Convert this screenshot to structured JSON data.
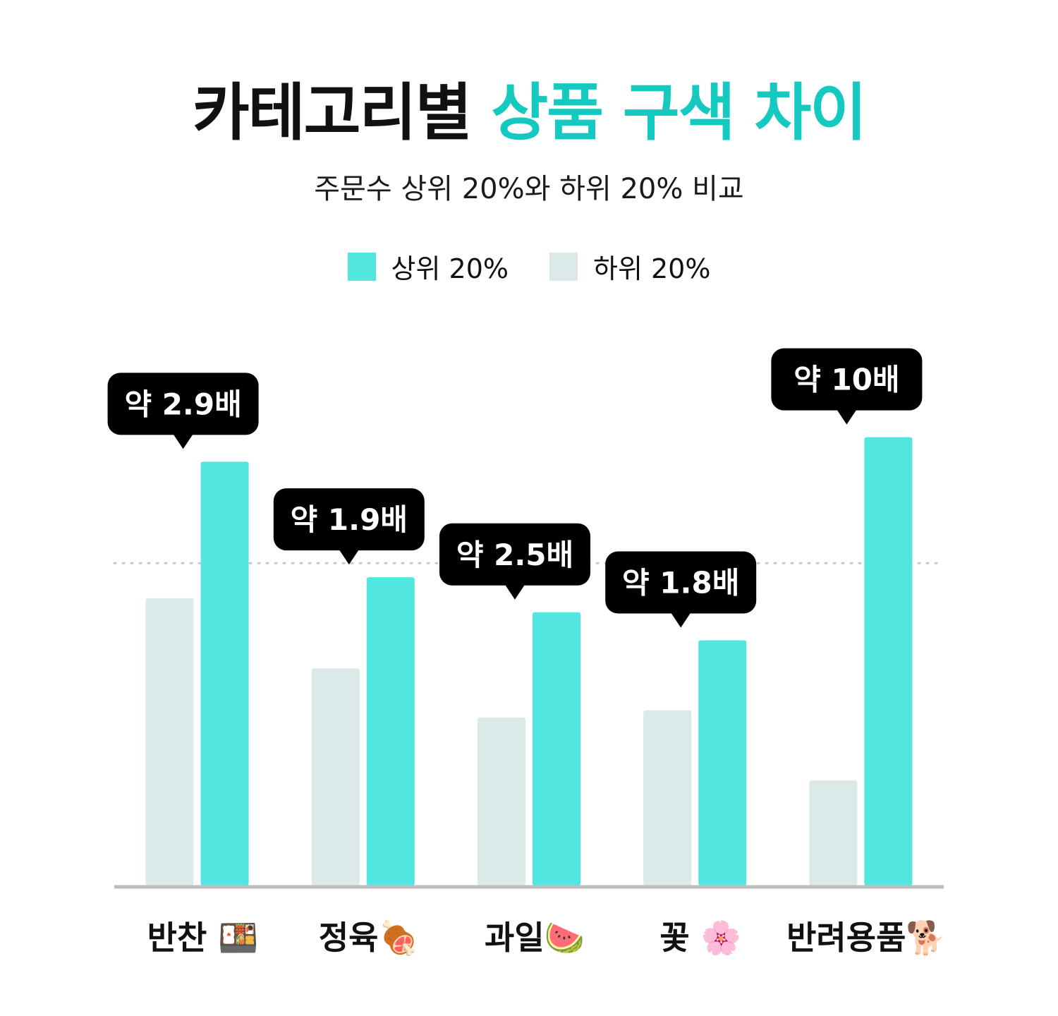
{
  "title": {
    "part1": "카테고리별",
    "part2": "상품 구색 차이"
  },
  "subtitle": "주문수 상위 20%와 하위 20% 비교",
  "colors": {
    "accent": "#14c9c0",
    "top": "#52e6e1",
    "bottom": "#dbe9e8",
    "tooltip": "#000000",
    "axis": "#bdbdbd"
  },
  "chart_data": {
    "type": "bar",
    "categories": [
      "반찬 🍱",
      "정육🍖",
      "과일🍉",
      "꽃 🌸",
      "반려용품🐕"
    ],
    "series": [
      {
        "name": "하위 20%",
        "color": "#dbe9e8",
        "values": [
          4.1,
          3.1,
          2.4,
          2.5,
          1.5
        ]
      },
      {
        "name": "상위 20%",
        "color": "#52e6e1",
        "values": [
          6.05,
          4.4,
          3.9,
          3.5,
          6.4
        ]
      }
    ],
    "annotations": [
      "약 2.9배",
      "약 1.9배",
      "약 2.5배",
      "약 1.8배",
      "약 10배"
    ],
    "reference_line": 4.6,
    "ylim": [
      0,
      7
    ],
    "legend_position": "top-center",
    "grid": false
  }
}
